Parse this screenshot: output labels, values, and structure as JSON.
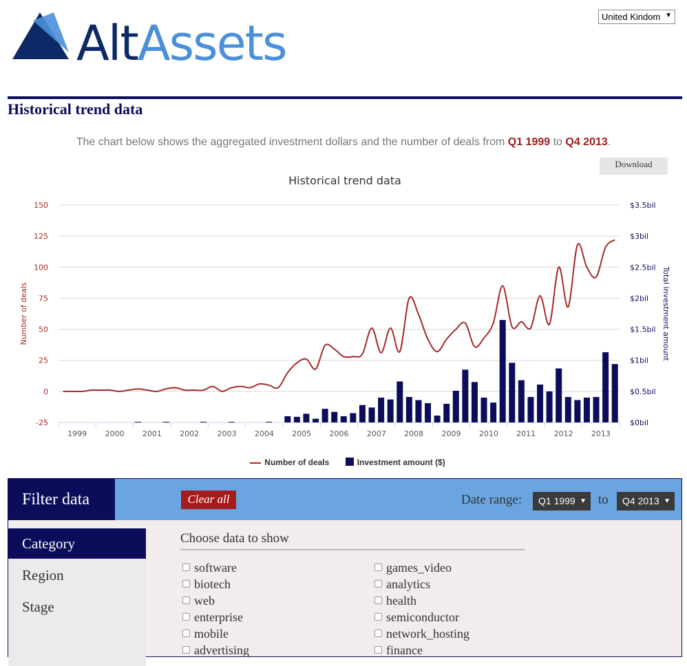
{
  "brand": {
    "word1": "Alt",
    "word2": "Assets",
    "primary_color": "#0e2a66",
    "accent_color": "#4a90d9"
  },
  "country_select": {
    "value": "United Kindom"
  },
  "page": {
    "title": "Historical trend data",
    "intro_prefix": "The chart below shows the aggregated investment dollars and the number of deals from ",
    "intro_from": "Q1 1999",
    "intro_mid": " to ",
    "intro_to": "Q4 2013",
    "intro_suffix": ".",
    "download_label": "Download"
  },
  "chart_data": {
    "type": "bar+line",
    "title": "Historical trend data",
    "x_categories": [
      "1999",
      "2000",
      "2001",
      "2002",
      "2003",
      "2004",
      "2005",
      "2006",
      "2007",
      "2008",
      "2009",
      "2010",
      "2011",
      "2012",
      "2013"
    ],
    "left_axis": {
      "label": "Number of deals",
      "ticks": [
        "150",
        "125",
        "100",
        "75",
        "50",
        "25",
        "0",
        "-25"
      ],
      "range": [
        -25,
        150
      ]
    },
    "right_axis": {
      "label": "Total investment amount",
      "ticks": [
        "$3.5bil",
        "$3bil",
        "$2.5bil",
        "$2bil",
        "$1.5bil",
        "$1bil",
        "$0.5bil",
        "$0bil"
      ],
      "range": [
        0,
        3.5
      ]
    },
    "quarters": [
      "Q1 1999",
      "Q2 1999",
      "Q3 1999",
      "Q4 1999",
      "Q1 2000",
      "Q2 2000",
      "Q3 2000",
      "Q4 2000",
      "Q1 2001",
      "Q2 2001",
      "Q3 2001",
      "Q4 2001",
      "Q1 2002",
      "Q2 2002",
      "Q3 2002",
      "Q4 2002",
      "Q1 2003",
      "Q2 2003",
      "Q3 2003",
      "Q4 2003",
      "Q1 2004",
      "Q2 2004",
      "Q3 2004",
      "Q4 2004",
      "Q1 2005",
      "Q2 2005",
      "Q3 2005",
      "Q4 2005",
      "Q1 2006",
      "Q2 2006",
      "Q3 2006",
      "Q4 2006",
      "Q1 2007",
      "Q2 2007",
      "Q3 2007",
      "Q4 2007",
      "Q1 2008",
      "Q2 2008",
      "Q3 2008",
      "Q4 2008",
      "Q1 2009",
      "Q2 2009",
      "Q3 2009",
      "Q4 2009",
      "Q1 2010",
      "Q2 2010",
      "Q3 2010",
      "Q4 2010",
      "Q1 2011",
      "Q2 2011",
      "Q3 2011",
      "Q4 2011",
      "Q1 2012",
      "Q2 2012",
      "Q3 2012",
      "Q4 2012",
      "Q1 2013",
      "Q2 2013",
      "Q3 2013",
      "Q4 2013"
    ],
    "series": [
      {
        "name": "Number of deals",
        "kind": "line",
        "axis": "left",
        "color": "#a52a2a",
        "values": [
          0,
          0,
          0,
          1,
          1,
          1,
          0,
          1,
          2,
          1,
          0,
          2,
          3,
          1,
          1,
          1,
          4,
          0,
          3,
          4,
          3,
          6,
          5,
          3,
          15,
          23,
          26,
          18,
          37,
          34,
          28,
          28,
          30,
          51,
          31,
          51,
          32,
          75,
          62,
          42,
          32,
          42,
          50,
          55,
          36,
          43,
          55,
          85,
          52,
          56,
          51,
          77,
          54,
          100,
          68,
          118,
          100,
          92,
          116,
          122
        ]
      },
      {
        "name": "Investment amount ($)",
        "kind": "bar",
        "axis": "right",
        "color": "#0b0d5a",
        "values": [
          0,
          0,
          0,
          0,
          0,
          0,
          0,
          0,
          0.01,
          0,
          0,
          0.01,
          0,
          0,
          0,
          0.01,
          0,
          0,
          0.01,
          0,
          0,
          0,
          0.01,
          0,
          0.1,
          0.09,
          0.14,
          0.06,
          0.22,
          0.17,
          0.1,
          0.15,
          0.28,
          0.24,
          0.4,
          0.37,
          0.66,
          0.41,
          0.36,
          0.31,
          0.11,
          0.3,
          0.51,
          0.85,
          0.65,
          0.4,
          0.32,
          1.65,
          0.96,
          0.68,
          0.41,
          0.61,
          0.5,
          0.87,
          0.41,
          0.36,
          0.4,
          0.41,
          1.13,
          0.94
        ]
      }
    ],
    "legend_position": "bottom",
    "grid": true
  },
  "filter": {
    "title": "Filter data",
    "clear_all": "Clear all",
    "date_range_label": "Date range:",
    "from_value": "Q1 1999",
    "to_label": "to",
    "to_value": "Q4 2013",
    "nav": [
      "Category",
      "Region",
      "Stage"
    ],
    "choose_title": "Choose data to show",
    "categories_col1": [
      "software",
      "biotech",
      "web",
      "enterprise",
      "mobile",
      "advertising"
    ],
    "categories_col2": [
      "games_video",
      "analytics",
      "health",
      "semiconductor",
      "network_hosting",
      "finance"
    ]
  }
}
